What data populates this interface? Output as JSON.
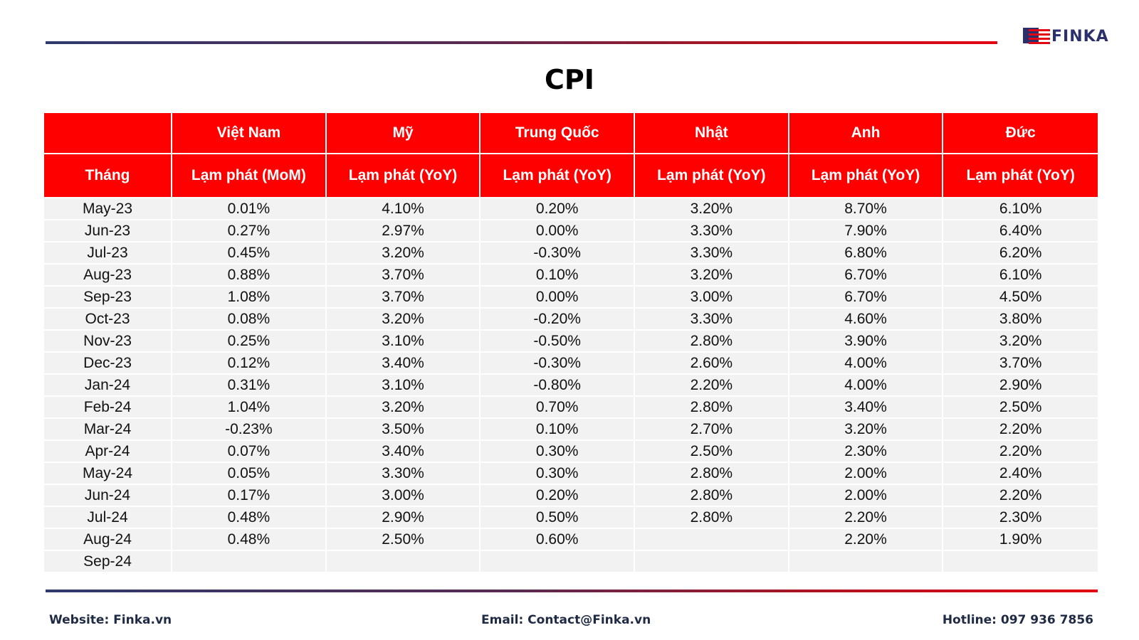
{
  "brand": {
    "logo_text": "FINKA",
    "colors": {
      "accent": "#ff0000",
      "navy": "#2b2f6b"
    }
  },
  "title": "CPI",
  "table": {
    "corner_top": "",
    "row_label_header": "Tháng",
    "countries": [
      "Việt Nam",
      "Mỹ",
      "Trung Quốc",
      "Nhật",
      "Anh",
      "Đức"
    ],
    "metrics": [
      "Lạm phát (MoM)",
      "Lạm phát (YoY)",
      "Lạm phát (YoY)",
      "Lạm phát (YoY)",
      "Lạm phát (YoY)",
      "Lạm phát (YoY)"
    ],
    "rows": [
      [
        "May-23",
        "0.01%",
        "4.10%",
        "0.20%",
        "3.20%",
        "8.70%",
        "6.10%"
      ],
      [
        "Jun-23",
        "0.27%",
        "2.97%",
        "0.00%",
        "3.30%",
        "7.90%",
        "6.40%"
      ],
      [
        "Jul-23",
        "0.45%",
        "3.20%",
        "-0.30%",
        "3.30%",
        "6.80%",
        "6.20%"
      ],
      [
        "Aug-23",
        "0.88%",
        "3.70%",
        "0.10%",
        "3.20%",
        "6.70%",
        "6.10%"
      ],
      [
        "Sep-23",
        "1.08%",
        "3.70%",
        "0.00%",
        "3.00%",
        "6.70%",
        "4.50%"
      ],
      [
        "Oct-23",
        "0.08%",
        "3.20%",
        "-0.20%",
        "3.30%",
        "4.60%",
        "3.80%"
      ],
      [
        "Nov-23",
        "0.25%",
        "3.10%",
        "-0.50%",
        "2.80%",
        "3.90%",
        "3.20%"
      ],
      [
        "Dec-23",
        "0.12%",
        "3.40%",
        "-0.30%",
        "2.60%",
        "4.00%",
        "3.70%"
      ],
      [
        "Jan-24",
        "0.31%",
        "3.10%",
        "-0.80%",
        "2.20%",
        "4.00%",
        "2.90%"
      ],
      [
        "Feb-24",
        "1.04%",
        "3.20%",
        "0.70%",
        "2.80%",
        "3.40%",
        "2.50%"
      ],
      [
        "Mar-24",
        "-0.23%",
        "3.50%",
        "0.10%",
        "2.70%",
        "3.20%",
        "2.20%"
      ],
      [
        "Apr-24",
        "0.07%",
        "3.40%",
        "0.30%",
        "2.50%",
        "2.30%",
        "2.20%"
      ],
      [
        "May-24",
        "0.05%",
        "3.30%",
        "0.30%",
        "2.80%",
        "2.00%",
        "2.40%"
      ],
      [
        "Jun-24",
        "0.17%",
        "3.00%",
        "0.20%",
        "2.80%",
        "2.00%",
        "2.20%"
      ],
      [
        "Jul-24",
        "0.48%",
        "2.90%",
        "0.50%",
        "2.80%",
        "2.20%",
        "2.30%"
      ],
      [
        "Aug-24",
        "0.48%",
        "2.50%",
        "0.60%",
        "",
        "2.20%",
        "1.90%"
      ],
      [
        "Sep-24",
        "",
        "",
        "",
        "",
        "",
        ""
      ]
    ]
  },
  "footer": {
    "website": "Website: Finka.vn",
    "email": "Email: Contact@Finka.vn",
    "hotline": "Hotline: 097 936 7856"
  }
}
